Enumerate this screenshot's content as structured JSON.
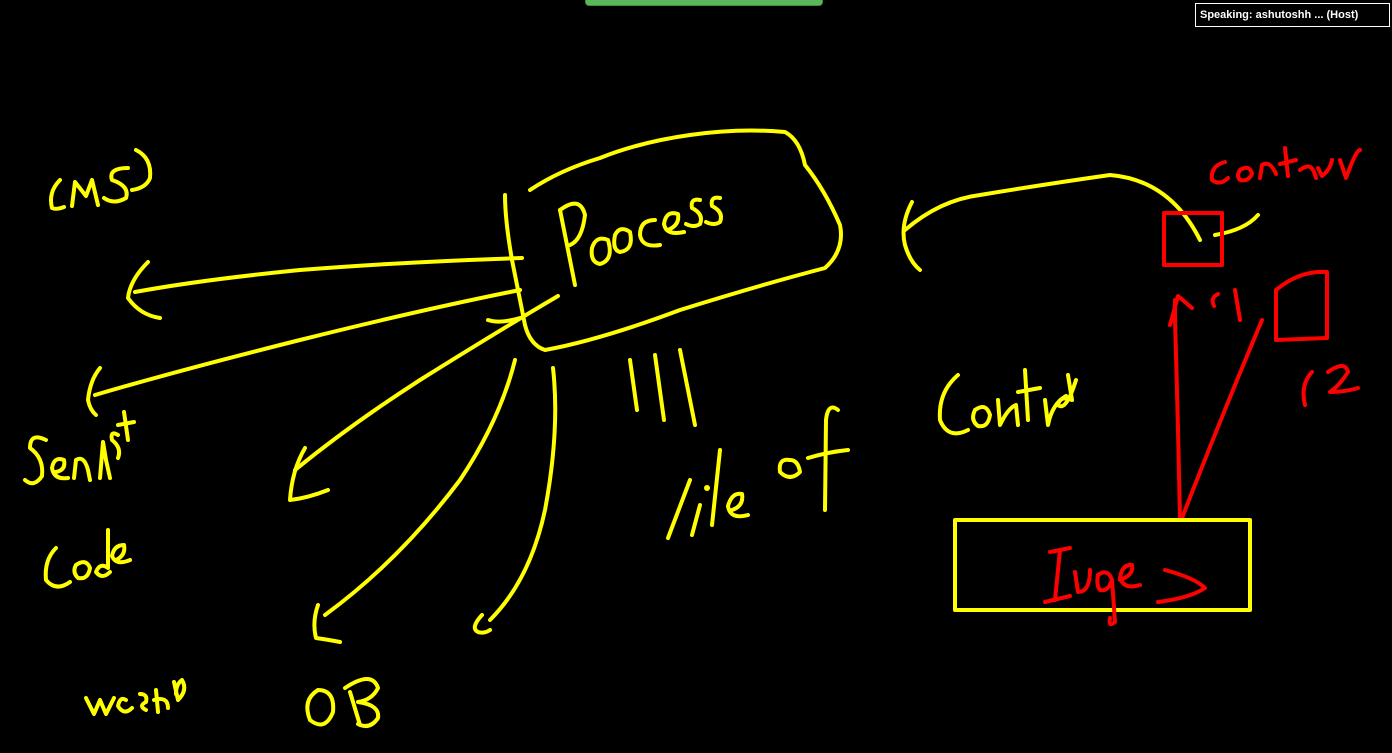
{
  "meeting": {
    "speaker_label": "Speaking: ashutoshh ... (Host)"
  },
  "annotation_colors": {
    "primary_ink": "#ffff00",
    "accent_ink": "#ff0000",
    "background": "#000000",
    "share_banner": "#5bb85a"
  },
  "whiteboard": {
    "handwritten_words": [
      "(MS)",
      "Process",
      "Senist",
      "Lode",
      "weshp",
      "OB",
      "|||",
      "Life of",
      "Contra",
      "contaue",
      "c1",
      "c2",
      "Images"
    ]
  }
}
